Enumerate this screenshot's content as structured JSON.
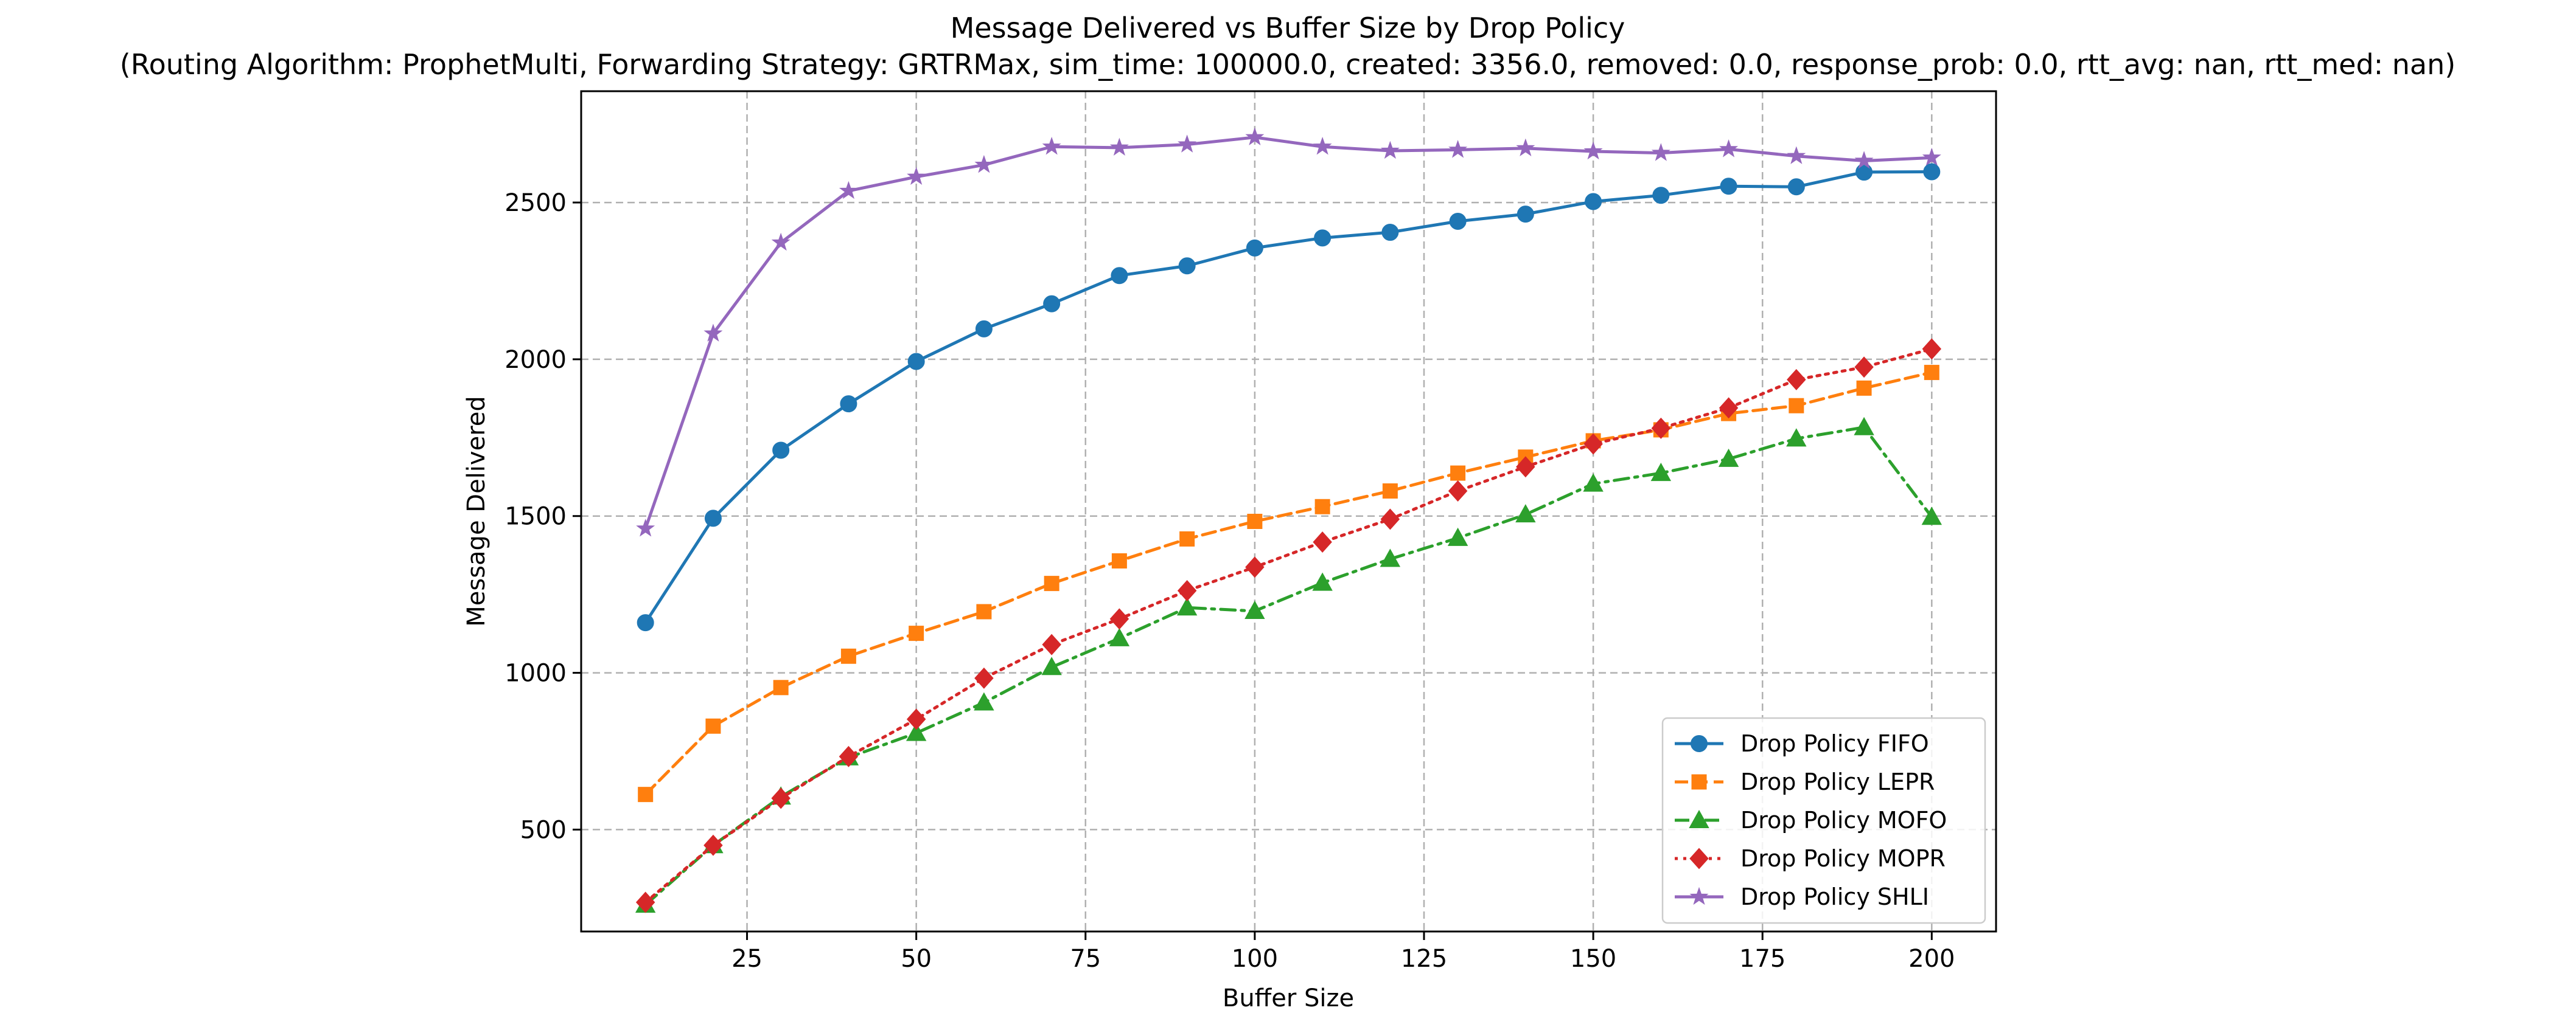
{
  "chart_data": {
    "type": "line",
    "title": "Message Delivered vs Buffer Size by Drop Policy",
    "subtitle": "(Routing Algorithm: ProphetMulti, Forwarding Strategy: GRTRMax, sim_time: 100000.0, created: 3356.0, removed: 0.0, response_prob: 0.0, rtt_avg: nan, rtt_med: nan)",
    "xlabel": "Buffer Size",
    "ylabel": "Message Delivered",
    "xlim": [
      0.5,
      209.5
    ],
    "ylim": [
      175,
      2855
    ],
    "x_ticks": [
      25,
      50,
      75,
      100,
      125,
      150,
      175,
      200
    ],
    "y_ticks": [
      500,
      1000,
      1500,
      2000,
      2500
    ],
    "grid": true,
    "legend_position": "lower-right",
    "x": [
      10,
      20,
      30,
      40,
      50,
      60,
      70,
      80,
      90,
      100,
      110,
      120,
      130,
      140,
      150,
      160,
      170,
      180,
      190,
      200
    ],
    "series": [
      {
        "name": "Drop Policy FIFO",
        "color": "#1f77b4",
        "marker": "circle",
        "line_style": "solid",
        "values": [
          1160,
          1493,
          1710,
          1858,
          1993,
          2097,
          2177,
          2267,
          2298,
          2355,
          2387,
          2405,
          2440,
          2463,
          2503,
          2523,
          2552,
          2550,
          2597,
          2598
        ]
      },
      {
        "name": "Drop Policy LEPR",
        "color": "#ff7f0e",
        "marker": "square",
        "line_style": "dashed",
        "values": [
          612,
          830,
          953,
          1053,
          1126,
          1195,
          1285,
          1357,
          1427,
          1483,
          1530,
          1580,
          1637,
          1688,
          1740,
          1775,
          1827,
          1852,
          1908,
          1958
        ]
      },
      {
        "name": "Drop Policy MOFO",
        "color": "#2ca02c",
        "marker": "triangle",
        "line_style": "dashdot",
        "values": [
          260,
          450,
          605,
          730,
          808,
          905,
          1018,
          1110,
          1208,
          1197,
          1287,
          1363,
          1430,
          1505,
          1603,
          1637,
          1682,
          1747,
          1783,
          1497
        ]
      },
      {
        "name": "Drop Policy MOPR",
        "color": "#d62728",
        "marker": "diamond",
        "line_style": "dotted",
        "values": [
          268,
          450,
          600,
          733,
          852,
          983,
          1090,
          1172,
          1262,
          1337,
          1417,
          1490,
          1580,
          1657,
          1730,
          1780,
          1845,
          1935,
          1975,
          2033
        ]
      },
      {
        "name": "Drop Policy SHLI",
        "color": "#9467bd",
        "marker": "star",
        "line_style": "solid",
        "values": [
          1460,
          2082,
          2372,
          2537,
          2582,
          2620,
          2678,
          2675,
          2685,
          2708,
          2678,
          2665,
          2668,
          2673,
          2663,
          2658,
          2670,
          2648,
          2633,
          2643
        ]
      }
    ]
  }
}
